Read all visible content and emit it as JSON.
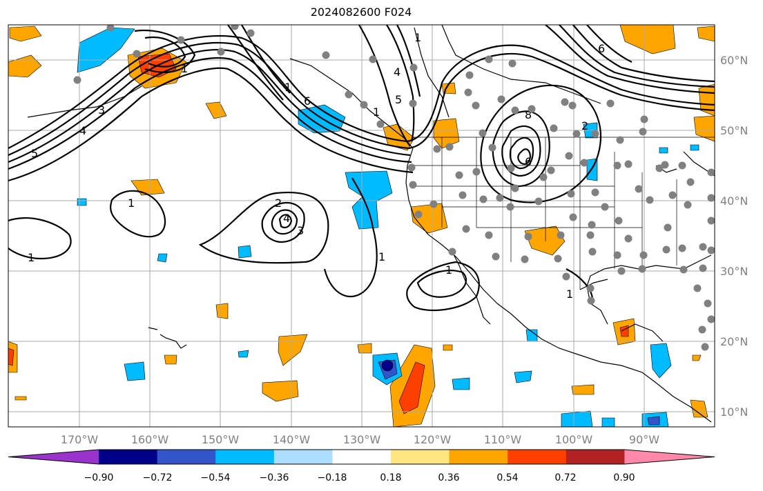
{
  "title": "2024082600 F024",
  "lat_labels": [
    "60°N",
    "50°N",
    "40°N",
    "30°N",
    "20°N",
    "10°N"
  ],
  "lon_labels": [
    "170°W",
    "160°W",
    "150°W",
    "140°W",
    "130°W",
    "120°W",
    "110°W",
    "100°W",
    "90°W"
  ],
  "colorbar": {
    "tick_labels": [
      "−0.90",
      "−0.72",
      "−0.54",
      "−0.36",
      "−0.18",
      "0.18",
      "0.36",
      "0.54",
      "0.72",
      "0.90"
    ],
    "colors": [
      "#9933cc",
      "#000088",
      "#3355cc",
      "#00bbff",
      "#aaddff",
      "#ffffff",
      "#ffe680",
      "#ffa500",
      "#ff3f00",
      "#b22222",
      "#ff88aa"
    ]
  },
  "contour_labels": [
    "1",
    "1",
    "1",
    "1",
    "2",
    "4",
    "3",
    "5",
    "4",
    "3",
    "6",
    "1",
    "4",
    "5",
    "6",
    "2",
    "6",
    "8",
    "1",
    "1",
    "1",
    "1"
  ],
  "colors": {
    "contour": "#000000",
    "grid": "#aaaaaa",
    "coast": "#000000",
    "station": "#808080"
  }
}
